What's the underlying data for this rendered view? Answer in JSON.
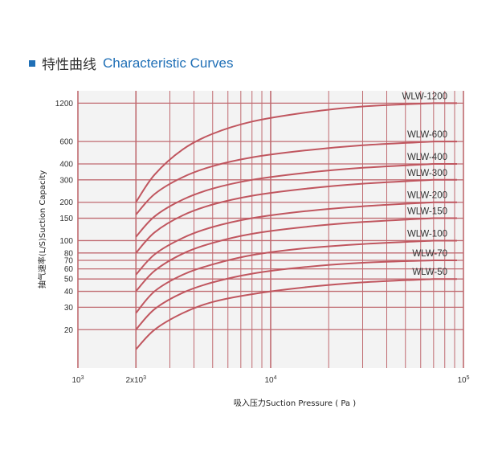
{
  "header": {
    "title_zh": "特性曲线",
    "title_en": "Characteristic  Curves"
  },
  "colors": {
    "accent": "#1f6fb6",
    "grid": "#c06a70",
    "curve": "#c0565f",
    "plot_bg": "#f3f3f3"
  },
  "chart_data": {
    "type": "line",
    "title": "特性曲线 Characteristic  Curves",
    "xlabel": "吸入压力Suction Pressure ( Pa )",
    "ylabel": "抽气速率(L/S)Suction Capacity",
    "x_scale": "log",
    "y_scale": "log",
    "xlim": [
      1000,
      100000
    ],
    "ylim": [
      10,
      1500
    ],
    "x_ticks": [
      {
        "value": 1000,
        "label": "10",
        "sup": "3"
      },
      {
        "value": 2000,
        "label": "2x10",
        "sup": "3"
      },
      {
        "value": 10000,
        "label": "10",
        "sup": "4"
      },
      {
        "value": 100000,
        "label": "10",
        "sup": "5"
      }
    ],
    "y_ticks": [
      20,
      30,
      40,
      50,
      60,
      70,
      80,
      100,
      150,
      200,
      300,
      400,
      600,
      1200
    ],
    "grid": true,
    "series": [
      {
        "name": "WLW-50",
        "x": [
          2000,
          2500,
          3500,
          5000,
          8000,
          15000,
          30000,
          70000
        ],
        "y": [
          14,
          20,
          27,
          33,
          38,
          43,
          47,
          50
        ]
      },
      {
        "name": "WLW-70",
        "x": [
          2000,
          2500,
          3500,
          5000,
          8000,
          15000,
          30000,
          70000
        ],
        "y": [
          20,
          29,
          39,
          47,
          55,
          62,
          67,
          70
        ]
      },
      {
        "name": "WLW-100",
        "x": [
          2000,
          2500,
          3500,
          5000,
          8000,
          15000,
          30000,
          70000
        ],
        "y": [
          27,
          40,
          54,
          65,
          77,
          87,
          94,
          100
        ]
      },
      {
        "name": "WLW-150",
        "x": [
          2000,
          2500,
          3500,
          5000,
          8000,
          15000,
          30000,
          70000
        ],
        "y": [
          40,
          58,
          79,
          96,
          113,
          128,
          140,
          150
        ]
      },
      {
        "name": "WLW-200",
        "x": [
          2000,
          2500,
          3500,
          5000,
          8000,
          15000,
          30000,
          70000
        ],
        "y": [
          54,
          78,
          105,
          128,
          150,
          170,
          186,
          200
        ]
      },
      {
        "name": "WLW-300",
        "x": [
          2000,
          2500,
          3500,
          5000,
          8000,
          15000,
          30000,
          70000
        ],
        "y": [
          80,
          116,
          158,
          192,
          225,
          255,
          280,
          300
        ]
      },
      {
        "name": "WLW-400",
        "x": [
          2000,
          2500,
          3500,
          5000,
          8000,
          15000,
          30000,
          70000
        ],
        "y": [
          107,
          155,
          210,
          256,
          300,
          340,
          373,
          400
        ]
      },
      {
        "name": "WLW-600",
        "x": [
          2000,
          2500,
          3500,
          5000,
          8000,
          15000,
          30000,
          70000
        ],
        "y": [
          160,
          232,
          315,
          384,
          450,
          510,
          560,
          600
        ]
      },
      {
        "name": "WLW-1200",
        "x": [
          2000,
          2500,
          3500,
          5000,
          8000,
          15000,
          30000,
          70000
        ],
        "y": [
          200,
          330,
          520,
          690,
          860,
          1010,
          1130,
          1200
        ]
      }
    ]
  }
}
